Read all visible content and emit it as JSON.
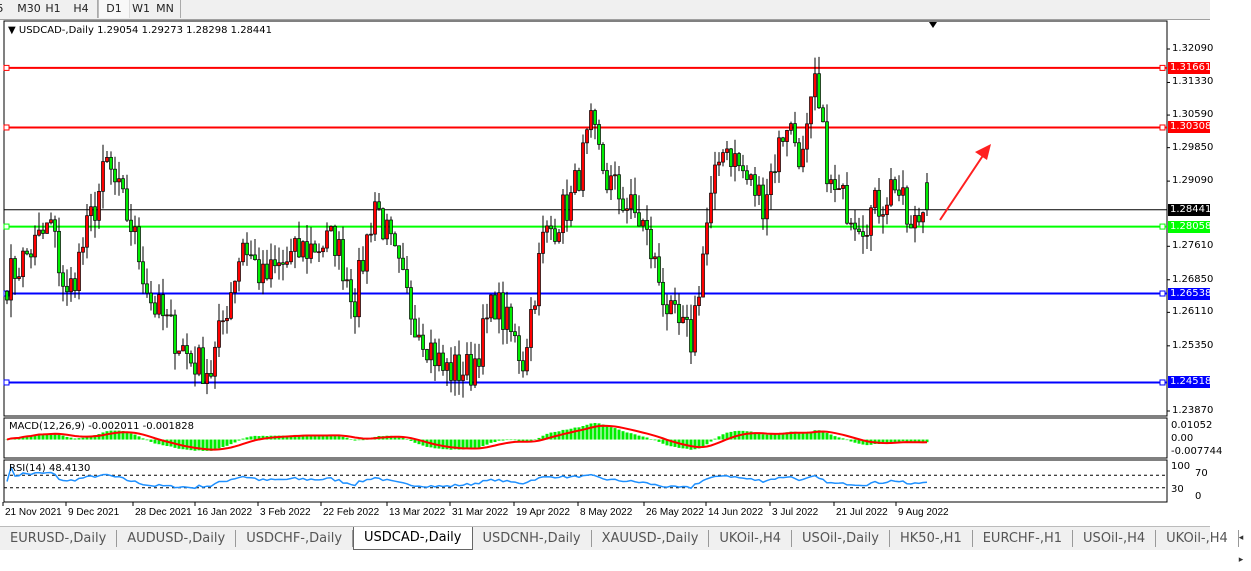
{
  "toolbar": {
    "timeframes": [
      "5",
      "M30",
      "H1",
      "H4",
      "D1",
      "W1",
      "MN"
    ],
    "active": "D1"
  },
  "header": {
    "symbol": "USDCAD-,Daily",
    "ohlc": "1.29054 1.29273 1.28298 1.28441"
  },
  "price_axis": [
    "1.32090",
    "1.31330",
    "1.30590",
    "1.29850",
    "1.29090",
    "1.27610",
    "1.26850",
    "1.26110",
    "1.25350",
    "1.23870"
  ],
  "levels": [
    {
      "price": 1.31661,
      "label": "1.31661",
      "color": "#ff0000"
    },
    {
      "price": 1.30308,
      "label": "1.30308",
      "color": "#ff0000"
    },
    {
      "price": 1.28441,
      "label": "1.28441",
      "color": "#000000"
    },
    {
      "price": 1.28058,
      "label": "1.28058",
      "color": "#00ff00"
    },
    {
      "price": 1.26538,
      "label": "1.26538",
      "color": "#0000ff"
    },
    {
      "price": 1.24518,
      "label": "1.24518",
      "color": "#0000ff"
    }
  ],
  "candles": {
    "bull_color": "#ff0000",
    "bear_color": "#00ee00",
    "close_waypoints": [
      [
        0,
        1.2684
      ],
      [
        11,
        1.2809
      ],
      [
        15,
        1.2639
      ],
      [
        25,
        1.2946
      ],
      [
        31,
        1.2809
      ],
      [
        36,
        1.2639
      ],
      [
        46,
        1.2503
      ],
      [
        51,
        1.248
      ],
      [
        59,
        1.2775
      ],
      [
        64,
        1.2684
      ],
      [
        74,
        1.2753
      ],
      [
        82,
        1.2775
      ],
      [
        87,
        1.2639
      ],
      [
        92,
        1.2866
      ],
      [
        101,
        1.2616
      ],
      [
        109,
        1.248
      ],
      [
        116,
        1.248
      ],
      [
        122,
        1.2639
      ],
      [
        129,
        1.2503
      ],
      [
        134,
        1.2775
      ],
      [
        141,
        1.2866
      ],
      [
        146,
        1.3025
      ],
      [
        150,
        1.2912
      ],
      [
        159,
        1.2809
      ],
      [
        166,
        1.2594
      ],
      [
        171,
        1.2548
      ],
      [
        175,
        1.2809
      ],
      [
        179,
        1.3002
      ],
      [
        185,
        1.2912
      ],
      [
        189,
        1.2866
      ],
      [
        195,
        1.3048
      ],
      [
        199,
        1.2957
      ],
      [
        202,
        1.3116
      ],
      [
        206,
        1.2889
      ],
      [
        214,
        1.2821
      ],
      [
        219,
        1.2866
      ],
      [
        222,
        1.2912
      ],
      [
        226,
        1.2787
      ],
      [
        229,
        1.2845
      ]
    ],
    "last": {
      "open": 1.29054,
      "high": 1.29273,
      "low": 1.28298,
      "close": 1.28441
    }
  },
  "macd": {
    "label": "MACD(12,26,9) -0.002011 -0.001828",
    "axis": [
      "0.01052",
      "0.00",
      "-0.007744"
    ],
    "hist_color": "#00ee00",
    "signal_color": "#ff0000"
  },
  "rsi": {
    "label": "RSI(14) 48.4130",
    "axis": [
      "100",
      "70",
      "30",
      "0"
    ],
    "line_color": "#1e90ff"
  },
  "time_axis": [
    "21 Nov 2021",
    "9 Dec 2021",
    "28 Dec 2021",
    "16 Jan 2022",
    "3 Feb 2022",
    "22 Feb 2022",
    "13 Mar 2022",
    "31 Mar 2022",
    "19 Apr 2022",
    "8 May 2022",
    "26 May 2022",
    "14 Jun 2022",
    "3 Jul 2022",
    "21 Jul 2022",
    "9 Aug 2022"
  ],
  "tabs": [
    "EURUSD-,Daily",
    "AUDUSD-,Daily",
    "USDCHF-,Daily",
    "USDCAD-,Daily",
    "USDCNH-,Daily",
    "XAUUSD-,Daily",
    "UKOil-,H4",
    "USOil-,Daily",
    "HK50-,H1",
    "EURCHF-,H1",
    "USOil-,H4",
    "UKOil-,H4"
  ],
  "active_tab": "USDCAD-,Daily",
  "tab_arrows": "◂ ▸"
}
